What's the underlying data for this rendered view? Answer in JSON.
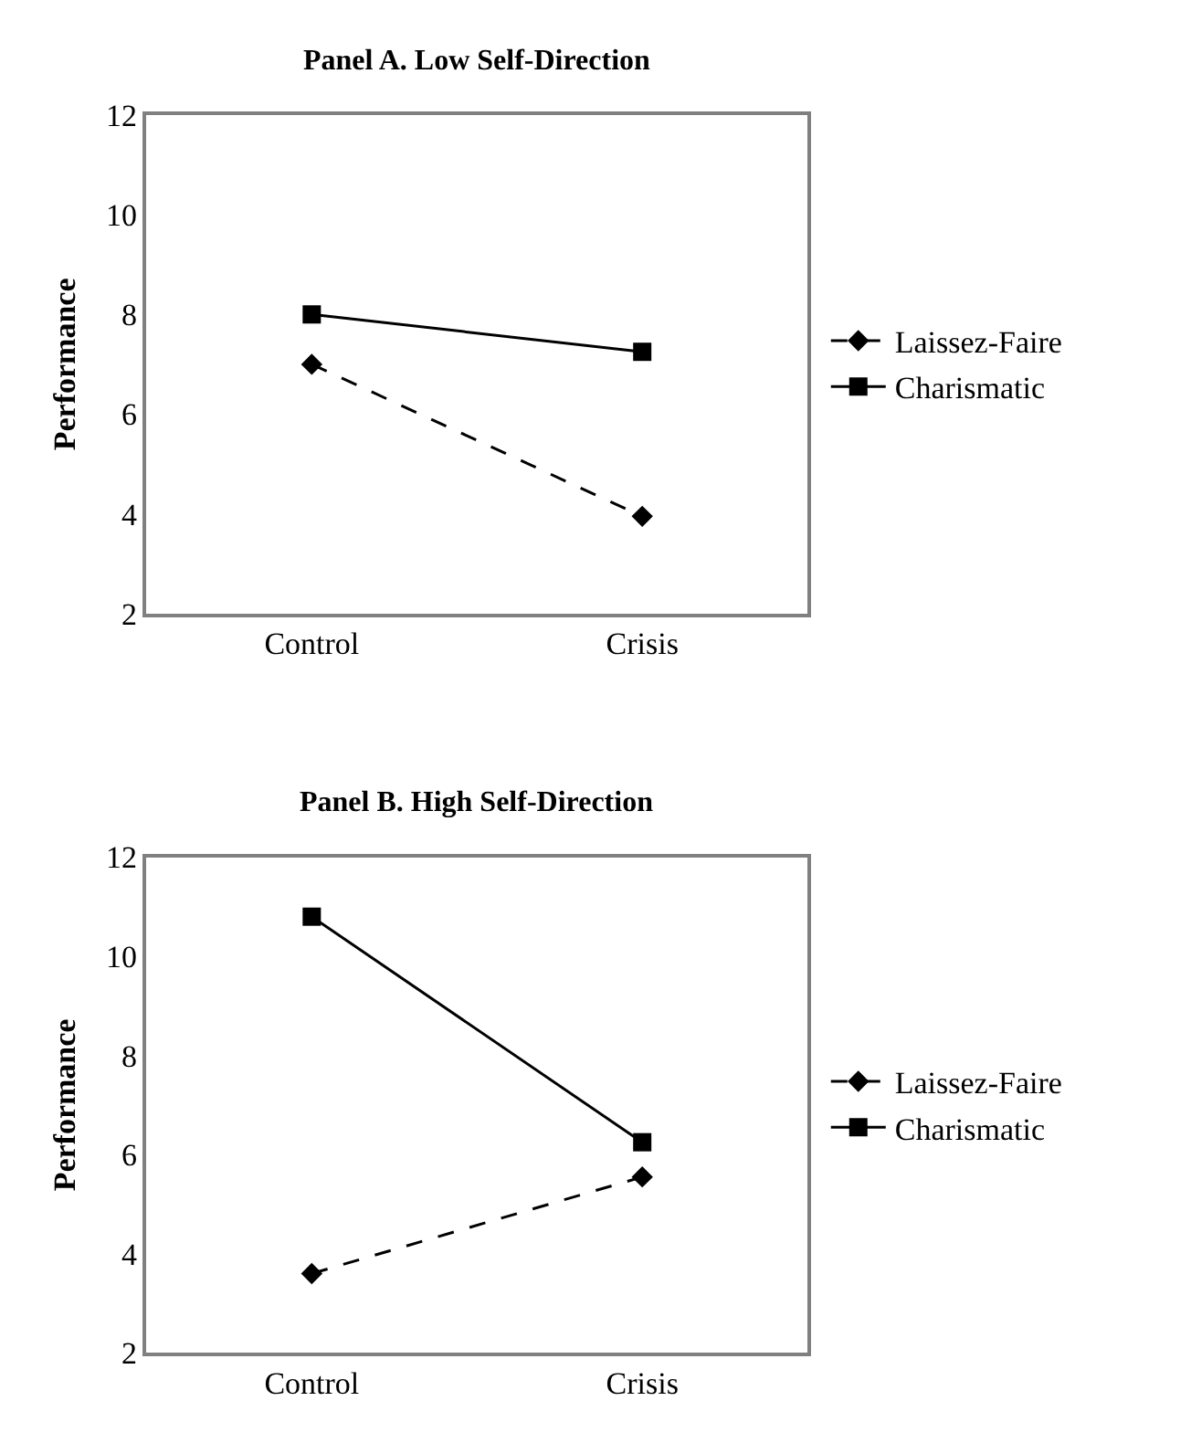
{
  "chart_data": [
    {
      "type": "line",
      "title": "Panel A. Low Self-Direction",
      "ylabel": "Performance",
      "categories": [
        "Control",
        "Crisis"
      ],
      "ylim": [
        2,
        12
      ],
      "yticks": [
        2,
        4,
        6,
        8,
        10,
        12
      ],
      "grid": false,
      "legend": "right",
      "series": [
        {
          "name": "Laissez-Faire",
          "color": "#000000",
          "marker": "diamond",
          "line_style": "dashed",
          "values": [
            7.0,
            3.95
          ]
        },
        {
          "name": "Charismatic",
          "color": "#000000",
          "marker": "square",
          "line_style": "solid",
          "values": [
            8.0,
            7.25
          ]
        }
      ]
    },
    {
      "type": "line",
      "title": "Panel B. High Self-Direction",
      "ylabel": "Performance",
      "categories": [
        "Control",
        "Crisis"
      ],
      "ylim": [
        2,
        12
      ],
      "yticks": [
        2,
        4,
        6,
        8,
        10,
        12
      ],
      "grid": false,
      "legend": "right",
      "series": [
        {
          "name": "Laissez-Faire",
          "color": "#000000",
          "marker": "diamond",
          "line_style": "dashed",
          "values": [
            3.6,
            5.55
          ]
        },
        {
          "name": "Charismatic",
          "color": "#000000",
          "marker": "square",
          "line_style": "solid",
          "values": [
            10.8,
            6.25
          ]
        }
      ]
    }
  ]
}
